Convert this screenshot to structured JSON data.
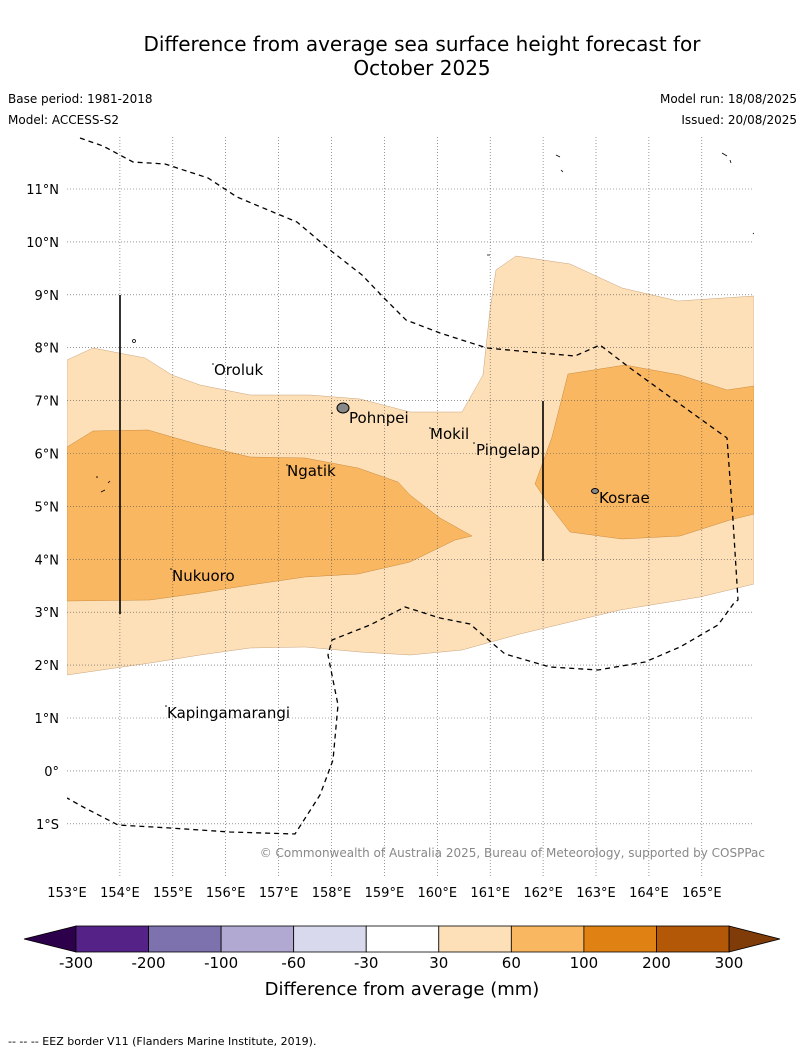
{
  "title_line1": "Difference from average sea surface height forecast for",
  "title_line2": "October 2025",
  "base_period": "Base period: 1981-2018",
  "model": "Model: ACCESS-S2",
  "model_run": "Model run: 18/08/2025",
  "issued": "Issued: 20/08/2025",
  "copyright": "© Commonwealth of Australia 2025, Bureau of Meteorology, supported by COSPPac",
  "lat_labels": [
    "11°N",
    "10°N",
    "9°N",
    "8°N",
    "7°N",
    "6°N",
    "5°N",
    "4°N",
    "3°N",
    "2°N",
    "1°N",
    "0°",
    "1°S"
  ],
  "lon_labels": [
    "153°E",
    "154°E",
    "155°E",
    "156°E",
    "157°E",
    "158°E",
    "159°E",
    "160°E",
    "161°E",
    "162°E",
    "163°E",
    "164°E",
    "165°E"
  ],
  "places": {
    "oroluk": "Oroluk",
    "pohnpei": "Pohnpei",
    "mokil": "Mokil",
    "pingelap": "Pingelap",
    "ngatik": "Ngatik",
    "kosrae": "Kosrae",
    "nukuoro": "Nukuoro",
    "kapingamarangi": "Kapingamarangi"
  },
  "colorbar": {
    "title": "Difference from average (mm)",
    "ticks": [
      "-300",
      "-200",
      "-100",
      "-60",
      "-30",
      "30",
      "60",
      "100",
      "200",
      "300"
    ],
    "colors": [
      "#552388",
      "#7e72ae",
      "#b1a9d1",
      "#d8d9ec",
      "#ffffff",
      "#fde0b8",
      "#fab762",
      "#e08114",
      "#b35807"
    ],
    "under_color": "#2d004b",
    "over_color": "#7f3b08"
  },
  "footer": "-- -- -- EEZ border V11 (Flanders Marine Institute, 2019)."
}
